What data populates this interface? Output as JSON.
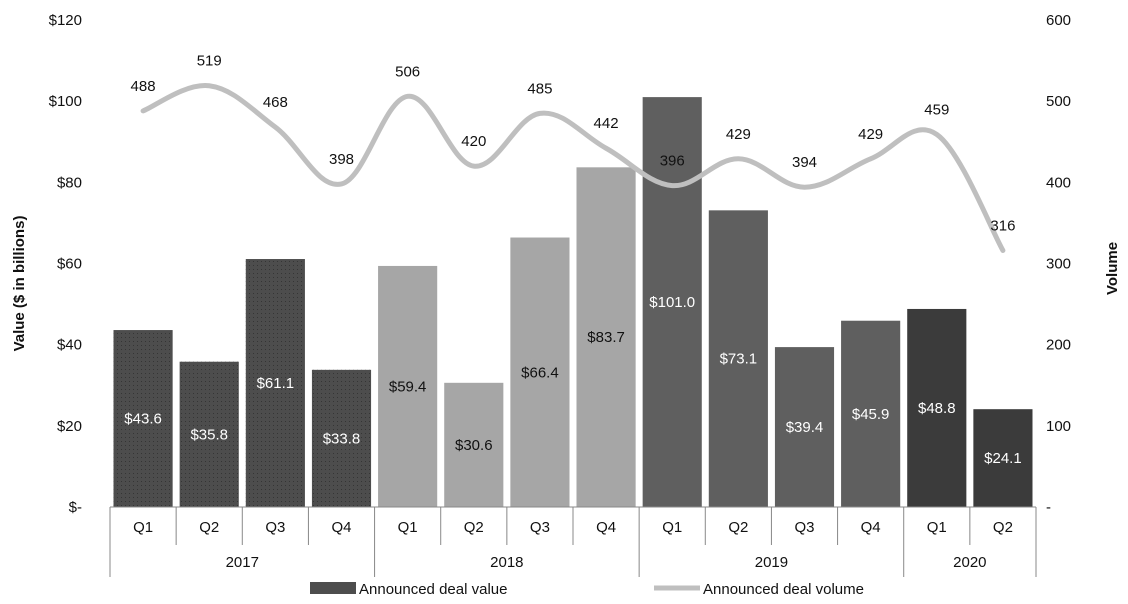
{
  "chart_data": {
    "type": "bar",
    "categories": [
      "Q1",
      "Q2",
      "Q3",
      "Q4",
      "Q1",
      "Q2",
      "Q3",
      "Q4",
      "Q1",
      "Q2",
      "Q3",
      "Q4",
      "Q1",
      "Q2"
    ],
    "groups": [
      {
        "label": "2017",
        "count": 4,
        "color": "#4d4d4d",
        "label_color": "#ffffff"
      },
      {
        "label": "2018",
        "count": 4,
        "color": "#a6a6a6",
        "label_color": "#111111"
      },
      {
        "label": "2019",
        "count": 4,
        "color": "#5f5f5f",
        "label_color": "#ffffff"
      },
      {
        "label": "2020",
        "count": 2,
        "color": "#3b3b3b",
        "label_color": "#ffffff"
      }
    ],
    "series": [
      {
        "name": "Announced deal value",
        "axis": "left",
        "type": "bar",
        "values": [
          43.6,
          35.8,
          61.1,
          33.8,
          59.4,
          30.6,
          66.4,
          83.7,
          101.0,
          73.1,
          39.4,
          45.9,
          48.8,
          24.1
        ],
        "labels": [
          "$43.6",
          "$35.8",
          "$61.1",
          "$33.8",
          "$59.4",
          "$30.6",
          "$66.4",
          "$83.7",
          "$101.0",
          "$73.1",
          "$39.4",
          "$45.9",
          "$48.8",
          "$24.1"
        ]
      },
      {
        "name": "Announced deal volume",
        "axis": "right",
        "type": "line",
        "color": "#bfbfbf",
        "values": [
          488,
          519,
          468,
          398,
          506,
          420,
          485,
          442,
          396,
          429,
          394,
          429,
          459,
          316
        ],
        "labels": [
          "488",
          "519",
          "468",
          "398",
          "506",
          "420",
          "485",
          "442",
          "396",
          "429",
          "394",
          "429",
          "459",
          "316"
        ]
      }
    ],
    "ylabel": "Value ($ in billions)",
    "y2label": "Volume",
    "ylim": [
      0,
      120
    ],
    "y2lim": [
      0,
      600
    ],
    "yticks": [
      "$-",
      "$20",
      "$40",
      "$60",
      "$80",
      "$100",
      "$120"
    ],
    "y2ticks": [
      "-",
      "100",
      "200",
      "300",
      "400",
      "500",
      "600"
    ],
    "legend_position": "bottom",
    "grid": false
  }
}
